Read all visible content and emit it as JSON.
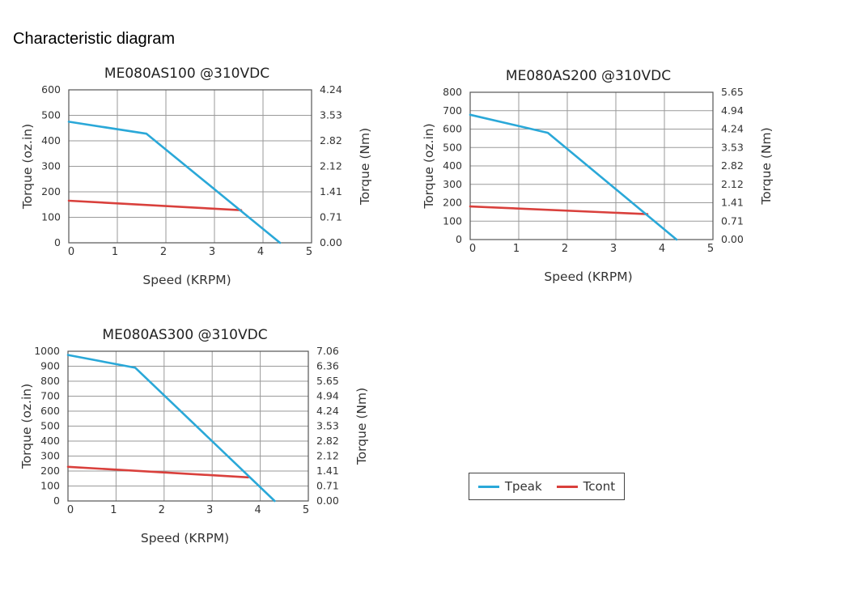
{
  "page": {
    "title": "Characteristic diagram"
  },
  "colors": {
    "tpeak": "#2aa8d8",
    "tcont": "#d9403c",
    "grid": "#9a9a9a",
    "frame": "#555555"
  },
  "legend": [
    {
      "label": "Tpeak",
      "color": "#2aa8d8"
    },
    {
      "label": "Tcont",
      "color": "#d9403c"
    }
  ],
  "chart_data": [
    {
      "type": "line",
      "title": "ME080AS100 @310VDC",
      "xlabel": "Speed (KRPM)",
      "ylabel": "Torque (oz.in)",
      "y2label": "Torque (Nm)",
      "xlim": [
        0,
        5
      ],
      "ylim": [
        0,
        600
      ],
      "xticks": [
        "0",
        "1",
        "2",
        "3",
        "4",
        "5"
      ],
      "yticks": [
        "0",
        "100",
        "200",
        "300",
        "400",
        "500",
        "600"
      ],
      "y2ticks": [
        "0.00",
        "0.71",
        "1.41",
        "2.12",
        "2.82",
        "3.53",
        "4.24"
      ],
      "grid": true,
      "series": [
        {
          "name": "Tpeak",
          "x": [
            0,
            1.6,
            4.35
          ],
          "y": [
            475,
            428,
            0
          ]
        },
        {
          "name": "Tcont",
          "x": [
            0,
            3.55
          ],
          "y": [
            165,
            128
          ]
        }
      ]
    },
    {
      "type": "line",
      "title": "ME080AS200 @310VDC",
      "xlabel": "Speed (KRPM)",
      "ylabel": "Torque (oz.in)",
      "y2label": "Torque (Nm)",
      "xlim": [
        0,
        5
      ],
      "ylim": [
        0,
        800
      ],
      "xticks": [
        "0",
        "1",
        "2",
        "3",
        "4",
        "5"
      ],
      "yticks": [
        "0",
        "100",
        "200",
        "300",
        "400",
        "500",
        "600",
        "700",
        "800"
      ],
      "y2ticks": [
        "0.00",
        "0.71",
        "1.41",
        "2.12",
        "2.82",
        "3.53",
        "4.24",
        "4.94",
        "5.65"
      ],
      "grid": true,
      "series": [
        {
          "name": "Tpeak",
          "x": [
            0,
            1.6,
            4.25
          ],
          "y": [
            678,
            580,
            0
          ]
        },
        {
          "name": "Tcont",
          "x": [
            0,
            3.65
          ],
          "y": [
            180,
            138
          ]
        }
      ]
    },
    {
      "type": "line",
      "title": "ME080AS300 @310VDC",
      "xlabel": "Speed (KRPM)",
      "ylabel": "Torque (oz.in)",
      "y2label": "Torque (Nm)",
      "xlim": [
        0,
        5
      ],
      "ylim": [
        0,
        1000
      ],
      "xticks": [
        "0",
        "1",
        "2",
        "3",
        "4",
        "5"
      ],
      "yticks": [
        "0",
        "100",
        "200",
        "300",
        "400",
        "500",
        "600",
        "700",
        "800",
        "900",
        "1000"
      ],
      "y2ticks": [
        "0.00",
        "0.71",
        "1.41",
        "2.12",
        "2.82",
        "3.53",
        "4.24",
        "4.94",
        "5.65",
        "6.36",
        "7.06"
      ],
      "grid": true,
      "series": [
        {
          "name": "Tpeak",
          "x": [
            0,
            1.4,
            4.3
          ],
          "y": [
            975,
            890,
            0
          ]
        },
        {
          "name": "Tcont",
          "x": [
            0,
            3.75
          ],
          "y": [
            228,
            158
          ]
        }
      ]
    }
  ]
}
